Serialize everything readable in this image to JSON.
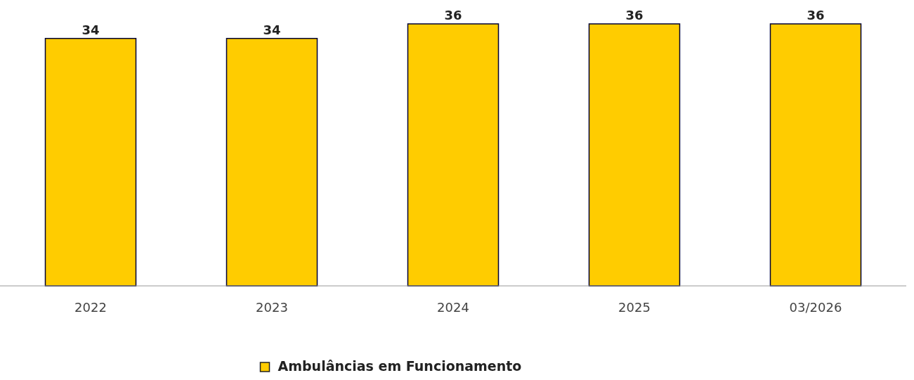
{
  "chart_data": {
    "type": "bar",
    "categories": [
      "2022",
      "2023",
      "2024",
      "2025",
      "03/2026"
    ],
    "series": [
      {
        "name": "Ambulâncias em Funcionamento",
        "color": "#ffcc00",
        "values": [
          34,
          34,
          36,
          36,
          36
        ]
      }
    ],
    "data_labels": true,
    "legend": "bottom"
  }
}
